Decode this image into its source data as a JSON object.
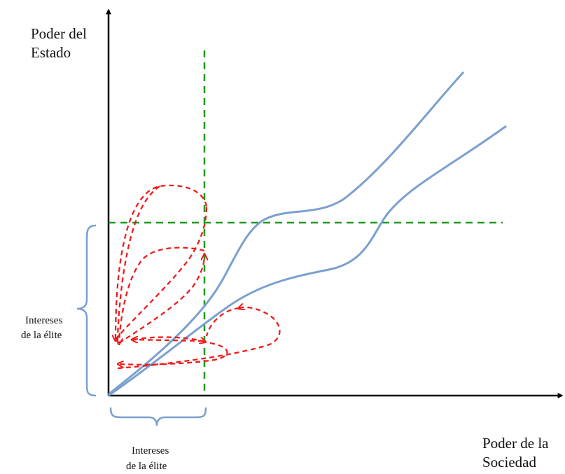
{
  "labels": {
    "y_axis_line1": "Poder del",
    "y_axis_line2": "Estado",
    "x_axis_line1": "Poder de la",
    "x_axis_line2": "Sociedad",
    "left_brace_line1": "Intereses",
    "left_brace_line2": "de la élite",
    "bottom_brace_line1": "Intereses",
    "bottom_brace_line2": "de la élite"
  },
  "colors": {
    "axis": "#000000",
    "curve": "#7aa0cf",
    "threshold": "#1f9a1f",
    "loop": "#ee1c1c",
    "brace": "#7aa0cf",
    "text": "#111111"
  }
}
